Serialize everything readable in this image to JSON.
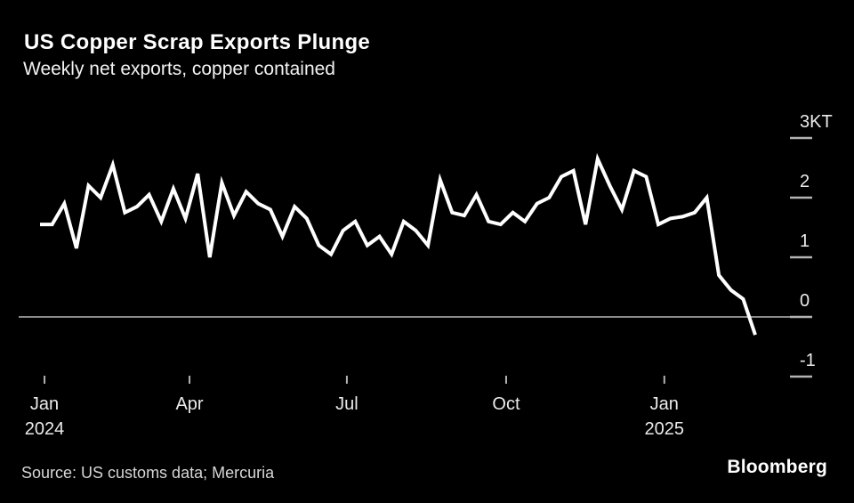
{
  "header": {
    "title": "US Copper Scrap Exports Plunge",
    "subtitle": "Weekly net exports, copper contained"
  },
  "chart_data": {
    "type": "line",
    "title": "US Copper Scrap Exports Plunge",
    "subtitle": "Weekly net exports, copper contained",
    "unit": "KT",
    "grid": false,
    "legend": "none",
    "zero_line": true,
    "ylim": [
      -1.15,
      3.45
    ],
    "series": [
      {
        "name": "Weekly net exports, copper contained (KT)",
        "values": [
          1.55,
          1.55,
          1.9,
          1.15,
          2.2,
          2.0,
          2.55,
          1.75,
          1.85,
          2.05,
          1.6,
          2.15,
          1.65,
          2.4,
          1.0,
          2.25,
          1.7,
          2.1,
          1.9,
          1.8,
          1.35,
          1.85,
          1.65,
          1.2,
          1.05,
          1.45,
          1.6,
          1.2,
          1.35,
          1.05,
          1.6,
          1.45,
          1.2,
          2.3,
          1.75,
          1.7,
          2.05,
          1.6,
          1.55,
          1.75,
          1.6,
          1.9,
          2.0,
          2.35,
          2.45,
          1.55,
          2.65,
          2.2,
          1.8,
          2.45,
          2.35,
          1.55,
          1.65,
          1.68,
          1.75,
          2.0,
          0.7,
          0.45,
          0.3,
          -0.3
        ]
      }
    ],
    "y_ticks": [
      {
        "label": "3KT",
        "value": 3
      },
      {
        "label": "2",
        "value": 2
      },
      {
        "label": "1",
        "value": 1
      },
      {
        "label": "0",
        "value": 0
      },
      {
        "label": "-1",
        "value": -1
      }
    ],
    "x_ticks": [
      {
        "label": "Jan",
        "sublabel": "2024",
        "week": 0.37
      },
      {
        "label": "Apr",
        "week": 12.33
      },
      {
        "label": "Jul",
        "week": 25.31
      },
      {
        "label": "Oct",
        "week": 38.45
      },
      {
        "label": "Jan",
        "sublabel": "2025",
        "week": 51.5
      }
    ],
    "colors": {
      "line": "#ffffff",
      "background": "#000000",
      "zero_line": "#8a8a8a",
      "tick": "#b3b3b3",
      "label": "#ebebeb"
    }
  },
  "footer": {
    "source": "Source: US customs data; Mercuria",
    "brand": "Bloomberg"
  }
}
